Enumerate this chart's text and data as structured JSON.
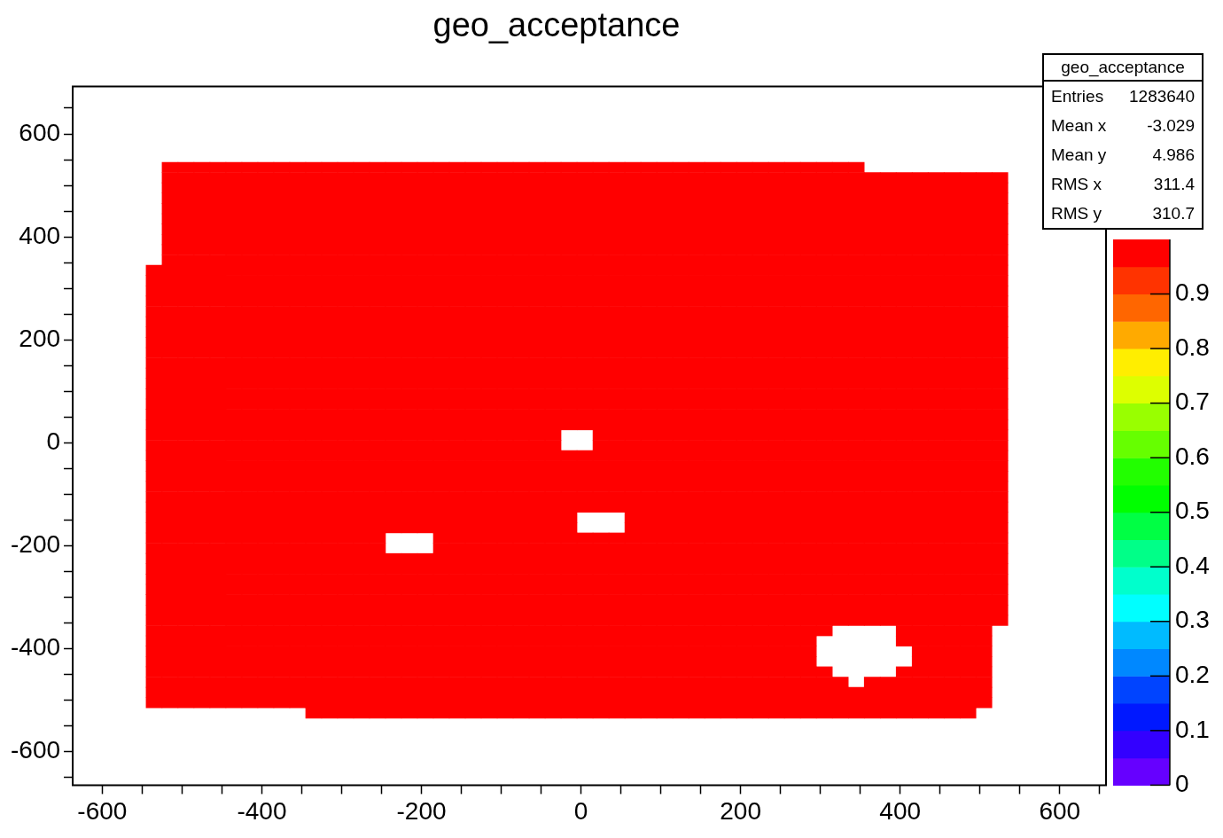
{
  "chart_data": {
    "type": "heatmap",
    "title": "geo_acceptance",
    "x": [
      -535,
      -515,
      -495,
      -475,
      -455,
      -435,
      -415,
      -395,
      -375,
      -355,
      -335,
      -315,
      -295,
      -275,
      -255,
      -235,
      -215,
      -195,
      -175,
      -155,
      -135,
      -115,
      -95,
      -75,
      -55,
      -35,
      -15,
      5,
      25,
      45,
      65,
      85,
      105,
      125,
      145,
      165,
      185,
      205,
      225,
      245,
      265,
      285,
      305,
      325,
      345,
      365,
      385,
      405,
      425,
      445,
      465,
      485,
      505,
      525
    ],
    "y": [
      535,
      515,
      495,
      475,
      455,
      435,
      415,
      395,
      375,
      355,
      335,
      315,
      295,
      275,
      255,
      235,
      215,
      195,
      175,
      155,
      135,
      115,
      95,
      75,
      55,
      35,
      15,
      -5,
      -25,
      -45,
      -65,
      -85,
      -105,
      -125,
      -145,
      -165,
      -185,
      -205,
      -225,
      -245,
      -265,
      -285,
      -305,
      -325,
      -345,
      -365,
      -385,
      -405,
      -425,
      -445,
      -465,
      -485,
      -505,
      -525
    ],
    "cells": [
      [
        null,
        1,
        1,
        1,
        1,
        1,
        1,
        1,
        1,
        1,
        1,
        1,
        1,
        1,
        1,
        1,
        1,
        1,
        1,
        1,
        1,
        1,
        1,
        1,
        1,
        1,
        1,
        1,
        1,
        1,
        1,
        1,
        1,
        1,
        1,
        1,
        1,
        1,
        1,
        1,
        1,
        1,
        1,
        1,
        1,
        null,
        null,
        null,
        null,
        null,
        null,
        null,
        null,
        null
      ],
      [
        null,
        1,
        1,
        1,
        1,
        1,
        1,
        1,
        1,
        1,
        1,
        1,
        1,
        1,
        1,
        1,
        1,
        1,
        1,
        1,
        1,
        1,
        1,
        1,
        1,
        1,
        1,
        1,
        1,
        1,
        1,
        1,
        1,
        1,
        1,
        1,
        1,
        1,
        1,
        1,
        1,
        1,
        1,
        1,
        1,
        1,
        1,
        1,
        1,
        1,
        1,
        1,
        1,
        1
      ],
      [
        null,
        1,
        1,
        1,
        1,
        1,
        1,
        1,
        1,
        1,
        1,
        1,
        1,
        1,
        1,
        1,
        1,
        1,
        1,
        1,
        1,
        1,
        1,
        1,
        1,
        1,
        1,
        1,
        1,
        1,
        1,
        1,
        1,
        1,
        1,
        1,
        1,
        1,
        1,
        1,
        1,
        1,
        1,
        1,
        1,
        1,
        1,
        1,
        1,
        1,
        1,
        1,
        1,
        1
      ],
      [
        null,
        1,
        1,
        1,
        1,
        1,
        1,
        1,
        1,
        1,
        1,
        1,
        1,
        1,
        1,
        1,
        1,
        1,
        1,
        1,
        1,
        1,
        1,
        1,
        1,
        1,
        1,
        1,
        1,
        1,
        1,
        1,
        1,
        1,
        1,
        1,
        1,
        1,
        1,
        1,
        1,
        1,
        1,
        1,
        1,
        1,
        1,
        1,
        1,
        1,
        1,
        1,
        1,
        1
      ],
      [
        null,
        1,
        1,
        1,
        1,
        1,
        1,
        1,
        1,
        1,
        1,
        1,
        1,
        1,
        1,
        1,
        1,
        1,
        1,
        1,
        1,
        1,
        1,
        1,
        1,
        1,
        1,
        1,
        1,
        1,
        1,
        1,
        1,
        1,
        1,
        1,
        1,
        1,
        1,
        1,
        1,
        1,
        1,
        1,
        1,
        1,
        1,
        1,
        1,
        1,
        1,
        1,
        1,
        1
      ],
      [
        null,
        1,
        1,
        1,
        1,
        1,
        1,
        1,
        1,
        1,
        1,
        1,
        1,
        1,
        1,
        1,
        1,
        1,
        1,
        1,
        1,
        1,
        1,
        1,
        1,
        1,
        1,
        1,
        1,
        1,
        1,
        1,
        1,
        1,
        1,
        1,
        1,
        1,
        1,
        1,
        1,
        1,
        1,
        1,
        1,
        1,
        1,
        1,
        1,
        1,
        1,
        1,
        1,
        1
      ],
      [
        null,
        1,
        1,
        1,
        1,
        1,
        1,
        1,
        1,
        1,
        1,
        1,
        1,
        1,
        1,
        1,
        1,
        1,
        1,
        1,
        1,
        1,
        1,
        1,
        1,
        1,
        1,
        1,
        1,
        1,
        1,
        1,
        1,
        1,
        1,
        1,
        1,
        1,
        1,
        1,
        1,
        1,
        1,
        1,
        1,
        1,
        1,
        1,
        1,
        1,
        1,
        1,
        1,
        1
      ],
      [
        null,
        1,
        1,
        1,
        1,
        1,
        1,
        1,
        1,
        1,
        1,
        1,
        1,
        1,
        1,
        1,
        1,
        1,
        1,
        1,
        1,
        1,
        1,
        1,
        1,
        1,
        1,
        1,
        1,
        1,
        1,
        1,
        1,
        1,
        1,
        1,
        1,
        1,
        1,
        1,
        1,
        1,
        1,
        1,
        1,
        1,
        1,
        1,
        1,
        1,
        1,
        1,
        1,
        1
      ],
      [
        null,
        1,
        1,
        1,
        1,
        1,
        1,
        1,
        1,
        1,
        1,
        1,
        1,
        1,
        1,
        1,
        1,
        1,
        1,
        1,
        1,
        1,
        1,
        1,
        1,
        1,
        1,
        1,
        1,
        1,
        1,
        1,
        1,
        1,
        1,
        1,
        1,
        1,
        1,
        1,
        1,
        1,
        1,
        1,
        1,
        1,
        1,
        1,
        1,
        1,
        1,
        1,
        1,
        1
      ],
      [
        null,
        1,
        1,
        1,
        1,
        1,
        1,
        1,
        1,
        1,
        1,
        1,
        1,
        1,
        1,
        1,
        1,
        1,
        1,
        1,
        1,
        1,
        1,
        1,
        1,
        1,
        1,
        1,
        1,
        1,
        1,
        1,
        1,
        1,
        1,
        1,
        1,
        1,
        1,
        1,
        1,
        1,
        1,
        1,
        1,
        1,
        1,
        1,
        1,
        1,
        1,
        1,
        1,
        1
      ],
      [
        1,
        1,
        1,
        1,
        1,
        1,
        1,
        1,
        1,
        1,
        1,
        1,
        1,
        1,
        1,
        1,
        1,
        1,
        1,
        1,
        1,
        1,
        1,
        1,
        1,
        1,
        1,
        1,
        1,
        1,
        1,
        1,
        1,
        1,
        1,
        1,
        1,
        1,
        1,
        1,
        1,
        1,
        1,
        1,
        1,
        1,
        1,
        1,
        1,
        1,
        1,
        1,
        1,
        1
      ],
      [
        1,
        1,
        1,
        1,
        1,
        1,
        1,
        1,
        1,
        1,
        1,
        1,
        1,
        1,
        1,
        1,
        1,
        1,
        1,
        1,
        1,
        1,
        1,
        1,
        1,
        1,
        1,
        1,
        1,
        1,
        1,
        1,
        1,
        1,
        1,
        1,
        1,
        1,
        1,
        1,
        1,
        1,
        1,
        1,
        1,
        1,
        1,
        1,
        1,
        1,
        1,
        1,
        1,
        1
      ],
      [
        1,
        1,
        1,
        1,
        1,
        1,
        1,
        1,
        1,
        1,
        1,
        1,
        1,
        1,
        1,
        1,
        1,
        1,
        1,
        1,
        1,
        1,
        1,
        1,
        1,
        1,
        1,
        1,
        1,
        1,
        1,
        1,
        1,
        1,
        1,
        1,
        1,
        1,
        1,
        1,
        1,
        1,
        1,
        1,
        1,
        1,
        1,
        1,
        1,
        1,
        1,
        1,
        1,
        1
      ],
      [
        1,
        1,
        1,
        1,
        1,
        1,
        1,
        1,
        1,
        1,
        1,
        1,
        1,
        1,
        1,
        1,
        1,
        1,
        1,
        1,
        1,
        1,
        1,
        1,
        1,
        1,
        1,
        1,
        1,
        1,
        1,
        1,
        1,
        1,
        1,
        1,
        1,
        1,
        1,
        1,
        1,
        1,
        1,
        1,
        1,
        1,
        1,
        1,
        1,
        1,
        1,
        1,
        1,
        1
      ],
      [
        1,
        1,
        1,
        1,
        1,
        1,
        1,
        1,
        1,
        1,
        1,
        1,
        1,
        1,
        1,
        1,
        1,
        1,
        1,
        1,
        1,
        1,
        1,
        1,
        1,
        1,
        1,
        1,
        1,
        1,
        1,
        1,
        1,
        1,
        1,
        1,
        1,
        1,
        1,
        1,
        1,
        1,
        1,
        1,
        1,
        1,
        1,
        1,
        1,
        1,
        1,
        1,
        1,
        1
      ],
      [
        1,
        1,
        1,
        1,
        1,
        1,
        1,
        1,
        1,
        1,
        1,
        1,
        1,
        1,
        1,
        1,
        1,
        1,
        1,
        1,
        1,
        1,
        1,
        1,
        1,
        1,
        1,
        1,
        1,
        1,
        1,
        1,
        1,
        1,
        1,
        1,
        1,
        1,
        1,
        1,
        1,
        1,
        1,
        1,
        1,
        1,
        1,
        1,
        1,
        1,
        1,
        1,
        1,
        1
      ],
      [
        1,
        1,
        1,
        1,
        1,
        1,
        1,
        1,
        1,
        1,
        1,
        1,
        1,
        1,
        1,
        1,
        1,
        1,
        1,
        1,
        1,
        1,
        1,
        1,
        1,
        1,
        1,
        1,
        1,
        1,
        1,
        1,
        1,
        1,
        1,
        1,
        1,
        1,
        1,
        1,
        1,
        1,
        1,
        1,
        1,
        1,
        1,
        1,
        1,
        1,
        1,
        1,
        1,
        1
      ],
      [
        1,
        1,
        1,
        1,
        1,
        1,
        1,
        1,
        1,
        1,
        1,
        1,
        1,
        1,
        1,
        1,
        1,
        1,
        1,
        1,
        1,
        1,
        1,
        1,
        1,
        1,
        1,
        1,
        1,
        1,
        1,
        1,
        1,
        1,
        1,
        1,
        1,
        1,
        1,
        1,
        1,
        1,
        1,
        1,
        1,
        1,
        1,
        1,
        1,
        1,
        1,
        1,
        1,
        1
      ],
      [
        1,
        1,
        1,
        1,
        1,
        1,
        1,
        1,
        1,
        1,
        1,
        1,
        1,
        1,
        1,
        1,
        1,
        1,
        1,
        1,
        1,
        1,
        1,
        1,
        1,
        1,
        1,
        1,
        1,
        1,
        1,
        1,
        1,
        1,
        1,
        1,
        1,
        1,
        1,
        1,
        1,
        1,
        1,
        1,
        1,
        1,
        1,
        1,
        1,
        1,
        1,
        1,
        1,
        1
      ],
      [
        1,
        1,
        1,
        1,
        1,
        1,
        1,
        1,
        1,
        1,
        1,
        1,
        1,
        1,
        1,
        1,
        1,
        1,
        1,
        1,
        1,
        1,
        1,
        1,
        1,
        1,
        1,
        1,
        1,
        1,
        1,
        1,
        1,
        1,
        1,
        1,
        1,
        1,
        1,
        1,
        1,
        1,
        1,
        1,
        1,
        1,
        1,
        1,
        1,
        1,
        1,
        1,
        1,
        1
      ],
      [
        1,
        1,
        1,
        1,
        1,
        1,
        1,
        1,
        1,
        1,
        1,
        1,
        1,
        1,
        1,
        1,
        1,
        1,
        1,
        1,
        1,
        1,
        1,
        1,
        1,
        1,
        1,
        1,
        1,
        1,
        1,
        1,
        1,
        1,
        1,
        1,
        1,
        1,
        1,
        1,
        1,
        1,
        1,
        1,
        1,
        1,
        1,
        1,
        1,
        1,
        1,
        1,
        1,
        1
      ],
      [
        1,
        1,
        1,
        1,
        1,
        1,
        1,
        1,
        1,
        1,
        1,
        1,
        1,
        1,
        1,
        1,
        1,
        1,
        1,
        1,
        1,
        1,
        1,
        1,
        1,
        1,
        1,
        1,
        1,
        1,
        1,
        1,
        1,
        1,
        1,
        1,
        1,
        1,
        1,
        1,
        1,
        1,
        1,
        1,
        1,
        1,
        1,
        1,
        1,
        1,
        1,
        1,
        1,
        1
      ],
      [
        1,
        1,
        1,
        1,
        1,
        1,
        1,
        1,
        1,
        1,
        1,
        1,
        1,
        1,
        1,
        1,
        1,
        1,
        1,
        1,
        1,
        1,
        1,
        1,
        1,
        1,
        1,
        1,
        1,
        1,
        1,
        1,
        1,
        1,
        1,
        1,
        1,
        1,
        1,
        1,
        1,
        1,
        1,
        1,
        1,
        1,
        1,
        1,
        1,
        1,
        1,
        1,
        1,
        1
      ],
      [
        1,
        1,
        1,
        1,
        1,
        1,
        1,
        1,
        1,
        1,
        1,
        1,
        1,
        1,
        1,
        1,
        1,
        1,
        1,
        1,
        1,
        1,
        1,
        1,
        1,
        1,
        1,
        1,
        1,
        1,
        1,
        1,
        1,
        1,
        1,
        1,
        1,
        1,
        1,
        1,
        1,
        1,
        1,
        1,
        1,
        1,
        1,
        1,
        1,
        1,
        1,
        1,
        1,
        1
      ],
      [
        1,
        1,
        1,
        1,
        1,
        1,
        1,
        1,
        1,
        1,
        1,
        1,
        1,
        1,
        1,
        1,
        1,
        1,
        1,
        1,
        1,
        1,
        1,
        1,
        1,
        1,
        1,
        1,
        1,
        1,
        1,
        1,
        1,
        1,
        1,
        1,
        1,
        1,
        1,
        1,
        1,
        1,
        1,
        1,
        1,
        1,
        1,
        1,
        1,
        1,
        1,
        1,
        1,
        1
      ],
      [
        1,
        1,
        1,
        1,
        1,
        1,
        1,
        1,
        1,
        1,
        1,
        1,
        1,
        1,
        1,
        1,
        1,
        1,
        1,
        1,
        1,
        1,
        1,
        1,
        1,
        1,
        1,
        1,
        1,
        1,
        1,
        1,
        1,
        1,
        1,
        1,
        1,
        1,
        1,
        1,
        1,
        1,
        1,
        1,
        1,
        1,
        1,
        1,
        1,
        1,
        1,
        1,
        1,
        1
      ],
      [
        1,
        1,
        1,
        1,
        1,
        1,
        1,
        1,
        1,
        1,
        1,
        1,
        1,
        1,
        1,
        1,
        1,
        1,
        1,
        1,
        1,
        1,
        1,
        1,
        1,
        1,
        null,
        null,
        1,
        1,
        1,
        1,
        1,
        1,
        1,
        1,
        1,
        1,
        1,
        1,
        1,
        1,
        1,
        1,
        1,
        1,
        1,
        1,
        1,
        1,
        1,
        1,
        1,
        1
      ],
      [
        1,
        1,
        1,
        1,
        1,
        1,
        1,
        1,
        1,
        1,
        1,
        1,
        1,
        1,
        1,
        1,
        1,
        1,
        1,
        1,
        1,
        1,
        1,
        1,
        1,
        1,
        null,
        null,
        1,
        1,
        1,
        1,
        1,
        1,
        1,
        1,
        1,
        1,
        1,
        1,
        1,
        1,
        1,
        1,
        1,
        1,
        1,
        1,
        1,
        1,
        1,
        1,
        1,
        1
      ],
      [
        1,
        1,
        1,
        1,
        1,
        1,
        1,
        1,
        1,
        1,
        1,
        1,
        1,
        1,
        1,
        1,
        1,
        1,
        1,
        1,
        1,
        1,
        1,
        1,
        1,
        1,
        1,
        1,
        1,
        1,
        1,
        1,
        1,
        1,
        1,
        1,
        1,
        1,
        1,
        1,
        1,
        1,
        1,
        1,
        1,
        1,
        1,
        1,
        1,
        1,
        1,
        1,
        1,
        1
      ],
      [
        1,
        1,
        1,
        1,
        1,
        1,
        1,
        1,
        1,
        1,
        1,
        1,
        1,
        1,
        1,
        1,
        1,
        1,
        1,
        1,
        1,
        1,
        1,
        1,
        1,
        1,
        1,
        1,
        1,
        1,
        1,
        1,
        1,
        1,
        1,
        1,
        1,
        1,
        1,
        1,
        1,
        1,
        1,
        1,
        1,
        1,
        1,
        1,
        1,
        1,
        1,
        1,
        1,
        1
      ],
      [
        1,
        1,
        1,
        1,
        1,
        1,
        1,
        1,
        1,
        1,
        1,
        1,
        1,
        1,
        1,
        1,
        1,
        1,
        1,
        1,
        1,
        1,
        1,
        1,
        1,
        1,
        1,
        1,
        1,
        1,
        1,
        1,
        1,
        1,
        1,
        1,
        1,
        1,
        1,
        1,
        1,
        1,
        1,
        1,
        1,
        1,
        1,
        1,
        1,
        1,
        1,
        1,
        1,
        1
      ],
      [
        1,
        1,
        1,
        1,
        1,
        1,
        1,
        1,
        1,
        1,
        1,
        1,
        1,
        1,
        1,
        1,
        1,
        1,
        1,
        1,
        1,
        1,
        1,
        1,
        1,
        1,
        1,
        1,
        1,
        1,
        1,
        1,
        1,
        1,
        1,
        1,
        1,
        1,
        1,
        1,
        1,
        1,
        1,
        1,
        1,
        1,
        1,
        1,
        1,
        1,
        1,
        1,
        1,
        1
      ],
      [
        1,
        1,
        1,
        1,
        1,
        1,
        1,
        1,
        1,
        1,
        1,
        1,
        1,
        1,
        1,
        1,
        1,
        1,
        1,
        1,
        1,
        1,
        1,
        1,
        1,
        1,
        1,
        1,
        1,
        1,
        1,
        1,
        1,
        1,
        1,
        1,
        1,
        1,
        1,
        1,
        1,
        1,
        1,
        1,
        1,
        1,
        1,
        1,
        1,
        1,
        1,
        1,
        1,
        1
      ],
      [
        1,
        1,
        1,
        1,
        1,
        1,
        1,
        1,
        1,
        1,
        1,
        1,
        1,
        1,
        1,
        1,
        1,
        1,
        1,
        1,
        1,
        1,
        1,
        1,
        1,
        1,
        1,
        1,
        1,
        1,
        1,
        1,
        1,
        1,
        1,
        1,
        1,
        1,
        1,
        1,
        1,
        1,
        1,
        1,
        1,
        1,
        1,
        1,
        1,
        1,
        1,
        1,
        1,
        1
      ],
      [
        1,
        1,
        1,
        1,
        1,
        1,
        1,
        1,
        1,
        1,
        1,
        1,
        1,
        1,
        1,
        1,
        1,
        1,
        1,
        1,
        1,
        1,
        1,
        1,
        1,
        1,
        1,
        null,
        null,
        null,
        1,
        1,
        1,
        1,
        1,
        1,
        1,
        1,
        1,
        1,
        1,
        1,
        1,
        1,
        1,
        1,
        1,
        1,
        1,
        1,
        1,
        1,
        1,
        1
      ],
      [
        1,
        1,
        1,
        1,
        1,
        1,
        1,
        1,
        1,
        1,
        1,
        1,
        1,
        1,
        1,
        1,
        1,
        1,
        1,
        1,
        1,
        1,
        1,
        1,
        1,
        1,
        1,
        null,
        null,
        null,
        1,
        1,
        1,
        1,
        1,
        1,
        1,
        1,
        1,
        1,
        1,
        1,
        1,
        1,
        1,
        1,
        1,
        1,
        1,
        1,
        1,
        1,
        1,
        1
      ],
      [
        1,
        1,
        1,
        1,
        1,
        1,
        1,
        1,
        1,
        1,
        1,
        1,
        1,
        1,
        1,
        null,
        null,
        null,
        1,
        1,
        1,
        1,
        1,
        1,
        1,
        1,
        1,
        1,
        1,
        1,
        1,
        1,
        1,
        1,
        1,
        1,
        1,
        1,
        1,
        1,
        1,
        1,
        1,
        1,
        1,
        1,
        1,
        1,
        1,
        1,
        1,
        1,
        1,
        1
      ],
      [
        1,
        1,
        1,
        1,
        1,
        1,
        1,
        1,
        1,
        1,
        1,
        1,
        1,
        1,
        1,
        null,
        null,
        null,
        1,
        1,
        1,
        1,
        1,
        1,
        1,
        1,
        1,
        1,
        1,
        1,
        1,
        1,
        1,
        1,
        1,
        1,
        1,
        1,
        1,
        1,
        1,
        1,
        1,
        1,
        1,
        1,
        1,
        1,
        1,
        1,
        1,
        1,
        1,
        1
      ],
      [
        1,
        1,
        1,
        1,
        1,
        1,
        1,
        1,
        1,
        1,
        1,
        1,
        1,
        1,
        1,
        1,
        1,
        1,
        1,
        1,
        1,
        1,
        1,
        1,
        1,
        1,
        1,
        1,
        1,
        1,
        1,
        1,
        1,
        1,
        1,
        1,
        1,
        1,
        1,
        1,
        1,
        1,
        1,
        1,
        1,
        1,
        1,
        1,
        1,
        1,
        1,
        1,
        1,
        1
      ],
      [
        1,
        1,
        1,
        1,
        1,
        1,
        1,
        1,
        1,
        1,
        1,
        1,
        1,
        1,
        1,
        1,
        1,
        1,
        1,
        1,
        1,
        1,
        1,
        1,
        1,
        1,
        1,
        1,
        1,
        1,
        1,
        1,
        1,
        1,
        1,
        1,
        1,
        1,
        1,
        1,
        1,
        1,
        1,
        1,
        1,
        1,
        1,
        1,
        1,
        1,
        1,
        1,
        1,
        1
      ],
      [
        1,
        1,
        1,
        1,
        1,
        1,
        1,
        1,
        1,
        1,
        1,
        1,
        1,
        1,
        1,
        1,
        1,
        1,
        1,
        1,
        1,
        1,
        1,
        1,
        1,
        1,
        1,
        1,
        1,
        1,
        1,
        1,
        1,
        1,
        1,
        1,
        1,
        1,
        1,
        1,
        1,
        1,
        1,
        1,
        1,
        1,
        1,
        1,
        1,
        1,
        1,
        1,
        1,
        1
      ],
      [
        1,
        1,
        1,
        1,
        1,
        1,
        1,
        1,
        1,
        1,
        1,
        1,
        1,
        1,
        1,
        1,
        1,
        1,
        1,
        1,
        1,
        1,
        1,
        1,
        1,
        1,
        1,
        1,
        1,
        1,
        1,
        1,
        1,
        1,
        1,
        1,
        1,
        1,
        1,
        1,
        1,
        1,
        1,
        1,
        1,
        1,
        1,
        1,
        1,
        1,
        1,
        1,
        1,
        1
      ],
      [
        1,
        1,
        1,
        1,
        1,
        1,
        1,
        1,
        1,
        1,
        1,
        1,
        1,
        1,
        1,
        1,
        1,
        1,
        1,
        1,
        1,
        1,
        1,
        1,
        1,
        1,
        1,
        1,
        1,
        1,
        1,
        1,
        1,
        1,
        1,
        1,
        1,
        1,
        1,
        1,
        1,
        1,
        1,
        1,
        1,
        1,
        1,
        1,
        1,
        1,
        1,
        1,
        1,
        1
      ],
      [
        1,
        1,
        1,
        1,
        1,
        1,
        1,
        1,
        1,
        1,
        1,
        1,
        1,
        1,
        1,
        1,
        1,
        1,
        1,
        1,
        1,
        1,
        1,
        1,
        1,
        1,
        1,
        1,
        1,
        1,
        1,
        1,
        1,
        1,
        1,
        1,
        1,
        1,
        1,
        1,
        1,
        1,
        1,
        1,
        1,
        1,
        1,
        1,
        1,
        1,
        1,
        1,
        1,
        1
      ],
      [
        1,
        1,
        1,
        1,
        1,
        1,
        1,
        1,
        1,
        1,
        1,
        1,
        1,
        1,
        1,
        1,
        1,
        1,
        1,
        1,
        1,
        1,
        1,
        1,
        1,
        1,
        1,
        1,
        1,
        1,
        1,
        1,
        1,
        1,
        1,
        1,
        1,
        1,
        1,
        1,
        1,
        1,
        1,
        1,
        1,
        1,
        1,
        1,
        1,
        1,
        1,
        1,
        1,
        1
      ],
      [
        1,
        1,
        1,
        1,
        1,
        1,
        1,
        1,
        1,
        1,
        1,
        1,
        1,
        1,
        1,
        1,
        1,
        1,
        1,
        1,
        1,
        1,
        1,
        1,
        1,
        1,
        1,
        1,
        1,
        1,
        1,
        1,
        1,
        1,
        1,
        1,
        1,
        1,
        1,
        1,
        1,
        1,
        1,
        null,
        null,
        null,
        null,
        1,
        1,
        1,
        1,
        1,
        1,
        null
      ],
      [
        1,
        1,
        1,
        1,
        1,
        1,
        1,
        1,
        1,
        1,
        1,
        1,
        1,
        1,
        1,
        1,
        1,
        1,
        1,
        1,
        1,
        1,
        1,
        1,
        1,
        1,
        1,
        1,
        1,
        1,
        1,
        1,
        1,
        1,
        1,
        1,
        1,
        1,
        1,
        1,
        1,
        1,
        null,
        null,
        null,
        null,
        null,
        1,
        1,
        1,
        1,
        1,
        1,
        null
      ],
      [
        1,
        1,
        1,
        1,
        1,
        1,
        1,
        1,
        1,
        1,
        1,
        1,
        1,
        1,
        1,
        1,
        1,
        1,
        1,
        1,
        1,
        1,
        1,
        1,
        1,
        1,
        1,
        1,
        1,
        1,
        1,
        1,
        1,
        1,
        1,
        1,
        1,
        1,
        1,
        1,
        1,
        1,
        null,
        null,
        null,
        null,
        null,
        null,
        1,
        1,
        1,
        1,
        1,
        null
      ],
      [
        1,
        1,
        1,
        1,
        1,
        1,
        1,
        1,
        1,
        1,
        1,
        1,
        1,
        1,
        1,
        1,
        1,
        1,
        1,
        1,
        1,
        1,
        1,
        1,
        1,
        1,
        1,
        1,
        1,
        1,
        1,
        1,
        1,
        1,
        1,
        1,
        1,
        1,
        1,
        1,
        1,
        1,
        null,
        null,
        null,
        null,
        null,
        null,
        1,
        1,
        1,
        1,
        1,
        null
      ],
      [
        1,
        1,
        1,
        1,
        1,
        1,
        1,
        1,
        1,
        1,
        1,
        1,
        1,
        1,
        1,
        1,
        1,
        1,
        1,
        1,
        1,
        1,
        1,
        1,
        1,
        1,
        1,
        1,
        1,
        1,
        1,
        1,
        1,
        1,
        1,
        1,
        1,
        1,
        1,
        1,
        1,
        1,
        1,
        null,
        null,
        null,
        null,
        1,
        1,
        1,
        1,
        1,
        1,
        null
      ],
      [
        1,
        1,
        1,
        1,
        1,
        1,
        1,
        1,
        1,
        1,
        1,
        1,
        1,
        1,
        1,
        1,
        1,
        1,
        1,
        1,
        1,
        1,
        1,
        1,
        1,
        1,
        1,
        1,
        1,
        1,
        1,
        1,
        1,
        1,
        1,
        1,
        1,
        1,
        1,
        1,
        1,
        1,
        1,
        1,
        null,
        1,
        1,
        1,
        1,
        1,
        1,
        1,
        1,
        null
      ],
      [
        1,
        1,
        1,
        1,
        1,
        1,
        1,
        1,
        1,
        1,
        1,
        1,
        1,
        1,
        1,
        1,
        1,
        1,
        1,
        1,
        1,
        1,
        1,
        1,
        1,
        1,
        1,
        1,
        1,
        1,
        1,
        1,
        1,
        1,
        1,
        1,
        1,
        1,
        1,
        1,
        1,
        1,
        1,
        1,
        1,
        1,
        1,
        1,
        1,
        1,
        1,
        1,
        1,
        null
      ],
      [
        1,
        1,
        1,
        1,
        1,
        1,
        1,
        1,
        1,
        1,
        1,
        1,
        1,
        1,
        1,
        1,
        1,
        1,
        1,
        1,
        1,
        1,
        1,
        1,
        1,
        1,
        1,
        1,
        1,
        1,
        1,
        1,
        1,
        1,
        1,
        1,
        1,
        1,
        1,
        1,
        1,
        1,
        1,
        1,
        1,
        1,
        1,
        1,
        1,
        1,
        1,
        1,
        1,
        null
      ],
      [
        null,
        null,
        null,
        null,
        null,
        null,
        null,
        null,
        null,
        null,
        1,
        1,
        1,
        1,
        1,
        1,
        1,
        1,
        1,
        1,
        1,
        1,
        1,
        1,
        1,
        1,
        1,
        1,
        1,
        1,
        1,
        1,
        1,
        1,
        1,
        1,
        1,
        1,
        1,
        1,
        1,
        1,
        1,
        1,
        1,
        1,
        1,
        1,
        1,
        1,
        1,
        1,
        null,
        null
      ]
    ],
    "clim": [
      0,
      1
    ],
    "cticks": [
      0,
      0.1,
      0.2,
      0.3,
      0.4,
      0.5,
      0.6,
      0.7,
      0.8,
      0.9
    ],
    "xlim": [
      -637,
      658
    ],
    "xticks": [
      -600,
      {
        "value": -550,
        "label": null
      },
      {
        "value": -500,
        "label": null
      },
      {
        "value": -450,
        "label": null
      },
      -400,
      {
        "value": -350,
        "label": null
      },
      {
        "value": -300,
        "label": null
      },
      {
        "value": -250,
        "label": null
      },
      -200,
      {
        "value": -150,
        "label": null
      },
      {
        "value": -100,
        "label": null
      },
      {
        "value": -50,
        "label": null
      },
      0,
      {
        "value": 50,
        "label": null
      },
      {
        "value": 100,
        "label": null
      },
      {
        "value": 150,
        "label": null
      },
      200,
      {
        "value": 250,
        "label": null
      },
      {
        "value": 300,
        "label": null
      },
      {
        "value": 350,
        "label": null
      },
      400,
      {
        "value": 450,
        "label": null
      },
      {
        "value": 500,
        "label": null
      },
      {
        "value": 550,
        "label": null
      },
      600,
      {
        "value": 650,
        "label": null
      }
    ],
    "ylim": [
      -665,
      692
    ],
    "yticks": [
      {
        "value": -650,
        "label": null
      },
      -600,
      {
        "value": -550,
        "label": null
      },
      {
        "value": -500,
        "label": null
      },
      {
        "value": -450,
        "label": null
      },
      -400,
      {
        "value": -350,
        "label": null
      },
      {
        "value": -300,
        "label": null
      },
      {
        "value": -250,
        "label": null
      },
      -200,
      {
        "value": -150,
        "label": null
      },
      {
        "value": -100,
        "label": null
      },
      {
        "value": -50,
        "label": null
      },
      0,
      {
        "value": 50,
        "label": null
      },
      {
        "value": 100,
        "label": null
      },
      {
        "value": 150,
        "label": null
      },
      200,
      {
        "value": 250,
        "label": null
      },
      {
        "value": 300,
        "label": null
      },
      {
        "value": 350,
        "label": null
      },
      400,
      {
        "value": 450,
        "label": null
      },
      {
        "value": 500,
        "label": null
      },
      {
        "value": 550,
        "label": null
      },
      600,
      {
        "value": 650,
        "label": null
      }
    ],
    "annotations": [
      "geo_acceptance",
      "Entries",
      "1283640",
      "Mean x",
      "-3.029",
      "Mean y",
      "4.986",
      "RMS x",
      "311.4",
      "RMS y",
      "310.7"
    ]
  }
}
